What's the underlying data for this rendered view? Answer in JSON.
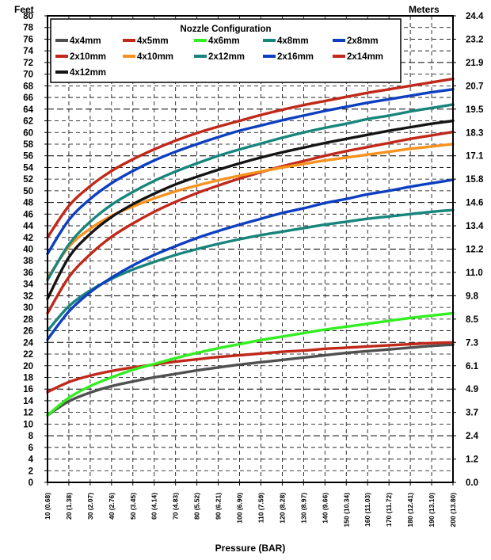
{
  "chart_data": {
    "type": "line",
    "xlabel": "Pressure (BAR)",
    "ylabel_left": "Feet",
    "ylabel_right": "Meters",
    "xlim": [
      10,
      200
    ],
    "ylim": [
      0,
      80
    ],
    "grid": true,
    "legend": {
      "title": "Nozzle Configuration",
      "placement": "top-left"
    },
    "x_tick_values": [
      10,
      20,
      30,
      40,
      50,
      60,
      70,
      80,
      90,
      100,
      110,
      120,
      130,
      140,
      150,
      160,
      170,
      180,
      190,
      200
    ],
    "x_tick_labels": [
      "10 (0.68)",
      "20 (1.38)",
      "30 (2.07)",
      "40 (2.76)",
      "50 (3.45)",
      "60 (4.14)",
      "70 (4.83)",
      "80 (5.52)",
      "90 (6.21)",
      "100 (6.90)",
      "110 (7.59)",
      "120 (8.28)",
      "130 (8.97)",
      "140 (9.66)",
      "150 (10.34)",
      "160 (11.03)",
      "170 (11.72)",
      "180 (12.41)",
      "190 (13.10)",
      "200 (13.80)"
    ],
    "y_left_ticks": [
      "0",
      "2",
      "4",
      "6",
      "8",
      "10",
      "12",
      "14",
      "16",
      "18",
      "20",
      "22",
      "24",
      "26",
      "28",
      "30",
      "32",
      "34",
      "36",
      "38",
      "40",
      "42",
      "44",
      "46",
      "48",
      "50",
      "52",
      "54",
      "56",
      "58",
      "60",
      "62",
      "64",
      "66",
      "68",
      "70",
      "72",
      "74",
      "76",
      "78",
      "80"
    ],
    "y_right_ticks": [
      "0.0",
      "1.2",
      "2.4",
      "3.7",
      "4.9",
      "6.1",
      "7.3",
      "8.5",
      "9.8",
      "11.0",
      "12.2",
      "13.4",
      "14.6",
      "15.8",
      "17.1",
      "18.3",
      "19.5",
      "20.7",
      "21.9",
      "23.2",
      "24.4"
    ],
    "x": [
      10,
      20,
      30,
      40,
      50,
      60,
      70,
      80,
      90,
      100,
      110,
      120,
      130,
      140,
      150,
      160,
      170,
      180,
      190,
      200
    ],
    "series": [
      {
        "name": "4x4mm",
        "color": "#505050",
        "values": [
          11.5,
          13.9,
          15.4,
          16.5,
          17.3,
          18.0,
          18.6,
          19.2,
          19.7,
          20.2,
          20.6,
          21.0,
          21.4,
          21.8,
          22.2,
          22.5,
          22.8,
          23.1,
          23.4,
          23.6
        ]
      },
      {
        "name": "4x5mm",
        "color": "#c0281a",
        "values": [
          15.5,
          17.2,
          18.3,
          19.1,
          19.7,
          20.2,
          20.7,
          21.1,
          21.5,
          21.8,
          22.1,
          22.4,
          22.6,
          22.9,
          23.1,
          23.3,
          23.5,
          23.7,
          23.9,
          24.0
        ]
      },
      {
        "name": "4x6mm",
        "color": "#33ee22",
        "values": [
          11.5,
          14.5,
          16.5,
          18.0,
          19.3,
          20.3,
          21.3,
          22.2,
          23.0,
          23.7,
          24.4,
          25.0,
          25.6,
          26.2,
          26.7,
          27.2,
          27.7,
          28.2,
          28.6,
          29.0
        ]
      },
      {
        "name": "4x8mm",
        "color": "#18857d",
        "values": [
          26.0,
          30.2,
          32.9,
          34.9,
          36.5,
          37.8,
          39.0,
          40.0,
          40.9,
          41.7,
          42.4,
          43.0,
          43.6,
          44.2,
          44.7,
          45.2,
          45.6,
          46.0,
          46.4,
          46.7
        ]
      },
      {
        "name": "2x8mm",
        "color": "#0d3fc0",
        "values": [
          24.5,
          29.3,
          32.6,
          35.1,
          37.2,
          39.0,
          40.5,
          41.9,
          43.1,
          44.2,
          45.2,
          46.2,
          47.0,
          47.9,
          48.6,
          49.4,
          50.0,
          50.7,
          51.3,
          51.9
        ]
      },
      {
        "name": "2x10mm",
        "color": "#c0281a",
        "values": [
          29.0,
          35.2,
          39.1,
          42.1,
          44.4,
          46.4,
          48.1,
          49.6,
          50.9,
          52.1,
          53.2,
          54.2,
          55.1,
          56.0,
          56.8,
          57.5,
          58.2,
          58.9,
          59.5,
          60.1
        ]
      },
      {
        "name": "4x10mm",
        "color": "#f7921e",
        "values": [
          35.0,
          40.4,
          43.5,
          45.7,
          47.3,
          48.7,
          49.9,
          50.9,
          51.8,
          52.6,
          53.3,
          54.0,
          54.6,
          55.2,
          55.7,
          56.2,
          56.7,
          57.2,
          57.6,
          58.0
        ]
      },
      {
        "name": "2x12mm",
        "color": "#18857d",
        "values": [
          34.7,
          40.8,
          44.7,
          47.6,
          49.8,
          51.7,
          53.3,
          54.7,
          56.0,
          57.1,
          58.1,
          59.1,
          60.0,
          60.8,
          61.5,
          62.3,
          62.9,
          63.6,
          64.2,
          64.8
        ]
      },
      {
        "name": "2x16mm",
        "color": "#0d3fc0",
        "values": [
          39.2,
          45.0,
          48.6,
          51.3,
          53.4,
          55.2,
          56.7,
          58.0,
          59.2,
          60.3,
          61.2,
          62.1,
          62.9,
          63.7,
          64.4,
          65.1,
          65.7,
          66.3,
          66.9,
          67.4
        ]
      },
      {
        "name": "2x14mm",
        "color": "#c0281a",
        "values": [
          42.0,
          47.4,
          50.8,
          53.4,
          55.4,
          57.1,
          58.6,
          59.9,
          61.0,
          62.0,
          63.0,
          63.9,
          64.7,
          65.4,
          66.1,
          66.8,
          67.4,
          68.0,
          68.6,
          69.2
        ]
      },
      {
        "name": "4x12mm",
        "color": "#141414",
        "values": [
          31.5,
          38.6,
          42.6,
          45.5,
          47.7,
          49.5,
          51.1,
          52.4,
          53.6,
          54.7,
          55.7,
          56.6,
          57.4,
          58.2,
          58.9,
          59.6,
          60.3,
          60.9,
          61.5,
          62.0
        ]
      }
    ]
  }
}
